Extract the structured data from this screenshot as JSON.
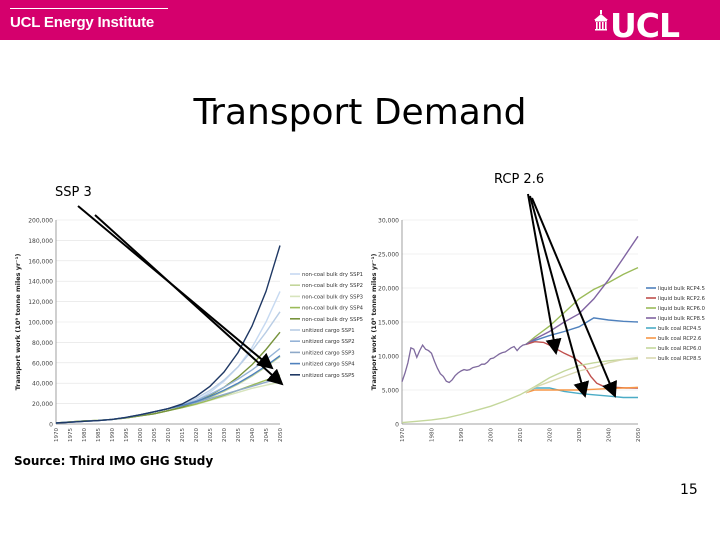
{
  "header": {
    "brand": "UCL Energy Institute",
    "logo_text": "UCL",
    "color": "#d5006d"
  },
  "title": "Transport Demand",
  "labels": {
    "left_annotation": "SSP 3",
    "right_annotation": "RCP 2.6",
    "source": "Source: Third IMO GHG Study",
    "page_number": "15"
  },
  "chart_data": [
    {
      "type": "line",
      "title": "",
      "ylabel": "Transport work (10⁹ tonne miles yr⁻¹)",
      "xlabel": "",
      "x": [
        1970,
        1975,
        1980,
        1985,
        1990,
        1995,
        2000,
        2005,
        2010,
        2015,
        2020,
        2025,
        2030,
        2035,
        2040,
        2045,
        2050
      ],
      "x_tick_labels": [
        "1970",
        "1975",
        "1980",
        "1985",
        "1990",
        "1995",
        "2000",
        "2005",
        "2010",
        "2015",
        "2020",
        "2025",
        "2030",
        "2035",
        "2040",
        "2045",
        "2050"
      ],
      "y_ticks": [
        "0",
        "20,000",
        "40,000",
        "60,000",
        "80,000",
        "100,000",
        "120,000",
        "140,000",
        "160,000",
        "180,000",
        "200,000"
      ],
      "ylim": [
        0,
        200000
      ],
      "legend_position": "right",
      "series": [
        {
          "name": "non-coal bulk dry SSP1",
          "color": "#c6d9f1",
          "values": [
            1000,
            2000,
            3000,
            3500,
            4500,
            6000,
            8000,
            10000,
            13000,
            17000,
            23000,
            31000,
            42000,
            56000,
            75000,
            100000,
            130000
          ]
        },
        {
          "name": "non-coal bulk dry SSP2",
          "color": "#c3d69b",
          "values": [
            1000,
            2000,
            3000,
            3500,
            4500,
            6000,
            8000,
            10000,
            13000,
            16500,
            21000,
            26000,
            32000,
            39000,
            47000,
            56000,
            66000
          ]
        },
        {
          "name": "non-coal bulk dry SSP3",
          "color": "#d7e4bd",
          "values": [
            1000,
            2000,
            3000,
            3500,
            4500,
            6000,
            8000,
            10000,
            13000,
            16000,
            19000,
            23000,
            27000,
            31000,
            35000,
            38000,
            41000
          ]
        },
        {
          "name": "non-coal bulk dry SSP4",
          "color": "#9bbb59",
          "values": [
            1000,
            2000,
            3000,
            3500,
            4500,
            6000,
            8000,
            10000,
            13000,
            16000,
            19500,
            23500,
            28000,
            33000,
            38000,
            43000,
            48000
          ]
        },
        {
          "name": "non-coal bulk dry SSP5",
          "color": "#77933c",
          "values": [
            1000,
            2000,
            3000,
            3500,
            4500,
            6000,
            8000,
            10000,
            13000,
            16500,
            21500,
            28000,
            36000,
            46000,
            58000,
            73000,
            90000
          ]
        },
        {
          "name": "unitized cargo SSP1",
          "color": "#b9cde5",
          "values": [
            1000,
            1800,
            2600,
            3300,
            4500,
            6500,
            9000,
            12000,
            15000,
            19000,
            25000,
            33000,
            43000,
            56000,
            72000,
            90000,
            110000
          ]
        },
        {
          "name": "unitized cargo SSP2",
          "color": "#95b3d7",
          "values": [
            1000,
            1800,
            2600,
            3300,
            4500,
            6500,
            9000,
            12000,
            15000,
            18500,
            23000,
            29000,
            36000,
            44000,
            53000,
            63000,
            74000
          ]
        },
        {
          "name": "unitized cargo SSP3",
          "color": "#8ea9c8",
          "values": [
            1000,
            1800,
            2600,
            3300,
            4500,
            6500,
            9000,
            12000,
            15000,
            18000,
            21000,
            25000,
            29000,
            33000,
            37000,
            41000,
            45000
          ]
        },
        {
          "name": "unitized cargo SSP4",
          "color": "#4f81bd",
          "values": [
            1000,
            1800,
            2600,
            3300,
            4500,
            6500,
            9000,
            12000,
            15000,
            18000,
            22000,
            27000,
            33000,
            40000,
            48000,
            57000,
            67000
          ]
        },
        {
          "name": "unitized cargo SSP5",
          "color": "#1f3864",
          "values": [
            1000,
            1800,
            2600,
            3300,
            4500,
            6500,
            9000,
            12000,
            15000,
            19500,
            27000,
            37000,
            51000,
            70000,
            96000,
            130000,
            175000
          ]
        }
      ]
    },
    {
      "type": "line",
      "title": "",
      "ylabel": "Transport work (10⁹ tonne miles yr⁻¹)",
      "xlabel": "",
      "x_tick_labels": [
        "1970",
        "1980",
        "1990",
        "2000",
        "2010",
        "2020",
        "2030",
        "2040",
        "2050"
      ],
      "y_ticks": [
        "0",
        "5,000",
        "10,000",
        "15,000",
        "20,000",
        "25,000",
        "30,000"
      ],
      "ylim": [
        0,
        30000
      ],
      "legend_position": "right",
      "historical": {
        "name": "",
        "color": "#7f6a9e",
        "points": [
          [
            1970,
            6200
          ],
          [
            1971,
            7500
          ],
          [
            1972,
            9000
          ],
          [
            1973,
            11200
          ],
          [
            1974,
            11000
          ],
          [
            1975,
            9800
          ],
          [
            1976,
            10800
          ],
          [
            1977,
            11600
          ],
          [
            1978,
            11000
          ],
          [
            1979,
            10800
          ],
          [
            1980,
            10400
          ],
          [
            1981,
            9200
          ],
          [
            1982,
            8200
          ],
          [
            1983,
            7400
          ],
          [
            1984,
            7000
          ],
          [
            1985,
            6300
          ],
          [
            1986,
            6100
          ],
          [
            1987,
            6500
          ],
          [
            1988,
            7100
          ],
          [
            1989,
            7500
          ],
          [
            1990,
            7800
          ],
          [
            1991,
            8000
          ],
          [
            1992,
            7900
          ],
          [
            1993,
            8000
          ],
          [
            1994,
            8300
          ],
          [
            1995,
            8400
          ],
          [
            1996,
            8500
          ],
          [
            1997,
            8800
          ],
          [
            1998,
            8800
          ],
          [
            1999,
            9100
          ],
          [
            2000,
            9600
          ],
          [
            2001,
            9700
          ],
          [
            2002,
            10000
          ],
          [
            2003,
            10300
          ],
          [
            2004,
            10500
          ],
          [
            2005,
            10600
          ],
          [
            2006,
            10900
          ],
          [
            2007,
            11200
          ],
          [
            2008,
            11400
          ],
          [
            2009,
            10800
          ],
          [
            2010,
            11300
          ],
          [
            2011,
            11600
          ],
          [
            2012,
            11700
          ]
        ]
      },
      "series": [
        {
          "name": "liquid bulk RCP4.5",
          "color": "#4f81bd",
          "points": [
            [
              2012,
              11700
            ],
            [
              2015,
              12300
            ],
            [
              2020,
              13000
            ],
            [
              2025,
              13600
            ],
            [
              2030,
              14300
            ],
            [
              2035,
              15600
            ],
            [
              2040,
              15300
            ],
            [
              2045,
              15100
            ],
            [
              2050,
              15000
            ]
          ]
        },
        {
          "name": "liquid bulk RCP2.6",
          "color": "#c0504d",
          "points": [
            [
              2012,
              11700
            ],
            [
              2015,
              12100
            ],
            [
              2018,
              12000
            ],
            [
              2020,
              11600
            ],
            [
              2025,
              10400
            ],
            [
              2028,
              9800
            ],
            [
              2030,
              9200
            ],
            [
              2032,
              8400
            ],
            [
              2034,
              7000
            ],
            [
              2036,
              6000
            ],
            [
              2038,
              5600
            ],
            [
              2042,
              5400
            ],
            [
              2046,
              5300
            ],
            [
              2050,
              5300
            ]
          ]
        },
        {
          "name": "liquid bulk RCP6.0",
          "color": "#9bbb59",
          "points": [
            [
              2012,
              11700
            ],
            [
              2015,
              12800
            ],
            [
              2020,
              14400
            ],
            [
              2025,
              16400
            ],
            [
              2030,
              18400
            ],
            [
              2035,
              19800
            ],
            [
              2040,
              20800
            ],
            [
              2045,
              22000
            ],
            [
              2050,
              23000
            ]
          ]
        },
        {
          "name": "liquid bulk RCP8.5",
          "color": "#8064a2",
          "points": [
            [
              2012,
              11700
            ],
            [
              2015,
              12500
            ],
            [
              2020,
              13600
            ],
            [
              2025,
              15000
            ],
            [
              2030,
              16200
            ],
            [
              2035,
              18400
            ],
            [
              2040,
              21200
            ],
            [
              2045,
              24400
            ],
            [
              2050,
              27600
            ]
          ]
        },
        {
          "name": "bulk coal RCP4.5",
          "color": "#4bacc6",
          "points": [
            [
              2012,
              4600
            ],
            [
              2015,
              5300
            ],
            [
              2020,
              5300
            ],
            [
              2025,
              4800
            ],
            [
              2030,
              4500
            ],
            [
              2035,
              4300
            ],
            [
              2040,
              4100
            ],
            [
              2045,
              3900
            ],
            [
              2050,
              3900
            ]
          ]
        },
        {
          "name": "bulk coal RCP2.6",
          "color": "#f79646",
          "points": [
            [
              2012,
              4600
            ],
            [
              2015,
              5000
            ],
            [
              2020,
              5000
            ],
            [
              2025,
              5000
            ],
            [
              2030,
              5000
            ],
            [
              2035,
              5100
            ],
            [
              2040,
              5200
            ],
            [
              2045,
              5300
            ],
            [
              2050,
              5400
            ]
          ]
        },
        {
          "name": "bulk coal RCP6.0",
          "color": "#c4d79b",
          "points": [
            [
              1970,
              200
            ],
            [
              1975,
              400
            ],
            [
              1980,
              600
            ],
            [
              1985,
              900
            ],
            [
              1990,
              1400
            ],
            [
              1995,
              2000
            ],
            [
              2000,
              2600
            ],
            [
              2005,
              3400
            ],
            [
              2010,
              4300
            ],
            [
              2015,
              5500
            ],
            [
              2020,
              6800
            ],
            [
              2025,
              7800
            ],
            [
              2030,
              8600
            ],
            [
              2035,
              9000
            ],
            [
              2040,
              9300
            ],
            [
              2045,
              9500
            ],
            [
              2050,
              9600
            ]
          ]
        },
        {
          "name": "bulk coal RCP8.5",
          "color": "#d9d9b0",
          "points": [
            [
              2012,
              4600
            ],
            [
              2015,
              5400
            ],
            [
              2020,
              6200
            ],
            [
              2025,
              7000
            ],
            [
              2030,
              7800
            ],
            [
              2035,
              8300
            ],
            [
              2040,
              9000
            ],
            [
              2045,
              9500
            ],
            [
              2050,
              9800
            ]
          ]
        }
      ]
    }
  ]
}
